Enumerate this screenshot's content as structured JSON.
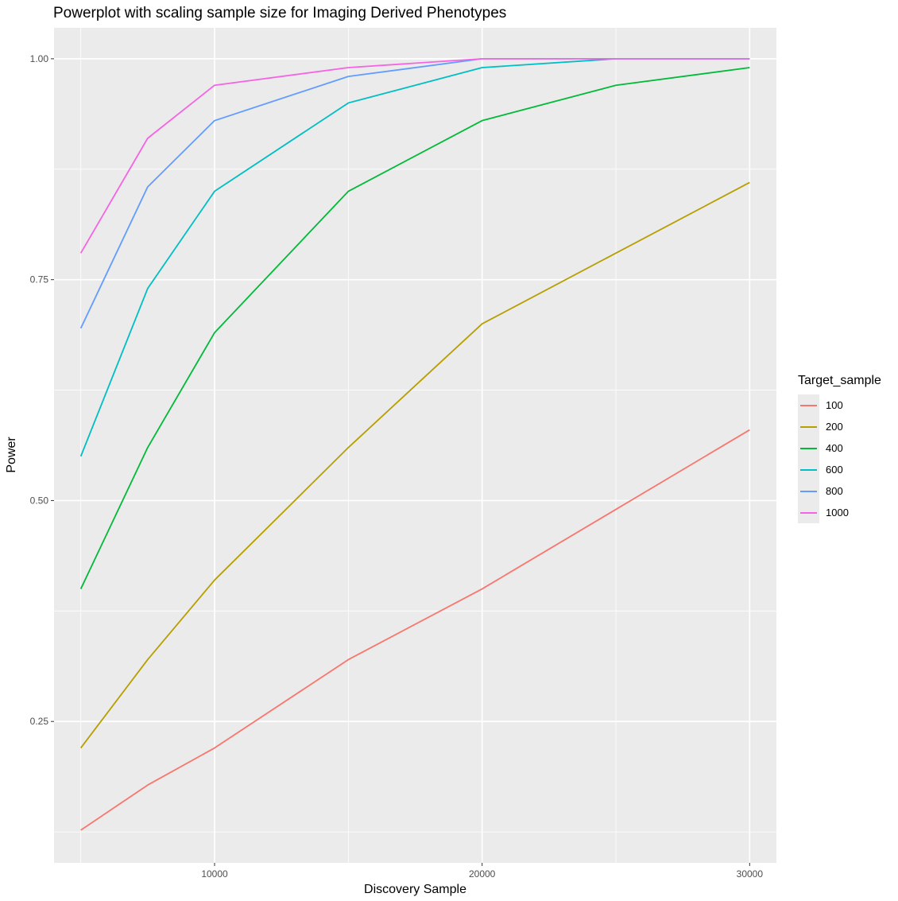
{
  "chart_data": {
    "type": "line",
    "title": "Powerplot with scaling sample size for Imaging Derived Phenotypes",
    "xlabel": "Discovery Sample",
    "ylabel": "Power",
    "xlim": [
      4000,
      31000
    ],
    "ylim": [
      0.09,
      1.035
    ],
    "xticks": [
      10000,
      20000,
      30000
    ],
    "xtick_labels": [
      "10000",
      "20000",
      "30000"
    ],
    "yticks": [
      0.25,
      0.5,
      0.75,
      1.0
    ],
    "ytick_labels": [
      "0.25",
      "0.50",
      "0.75",
      "1.00"
    ],
    "grid": true,
    "legend_title": "Target_sample",
    "legend_position": "right",
    "x": [
      5000,
      7500,
      10000,
      15000,
      20000,
      25000,
      30000
    ],
    "series": [
      {
        "name": "100",
        "color": "#F8766D",
        "values": [
          0.127,
          0.178,
          0.22,
          0.32,
          0.4,
          0.49,
          0.58
        ]
      },
      {
        "name": "200",
        "color": "#B79F00",
        "values": [
          0.22,
          0.32,
          0.41,
          0.56,
          0.7,
          0.78,
          0.86
        ]
      },
      {
        "name": "400",
        "color": "#00BA38",
        "values": [
          0.4,
          0.56,
          0.69,
          0.85,
          0.93,
          0.97,
          0.99
        ]
      },
      {
        "name": "600",
        "color": "#00BFC4",
        "values": [
          0.55,
          0.74,
          0.85,
          0.95,
          0.99,
          1.0,
          1.0
        ]
      },
      {
        "name": "800",
        "color": "#619CFF",
        "values": [
          0.695,
          0.855,
          0.93,
          0.98,
          1.0,
          1.0,
          1.0
        ]
      },
      {
        "name": "1000",
        "color": "#F564E3",
        "values": [
          0.78,
          0.91,
          0.97,
          0.99,
          1.0,
          1.0,
          1.0
        ]
      }
    ]
  }
}
